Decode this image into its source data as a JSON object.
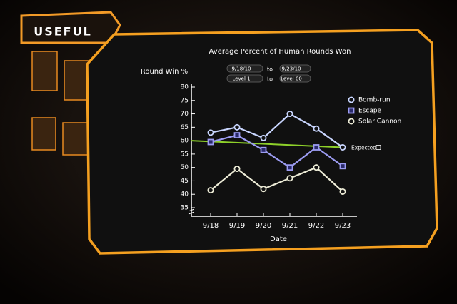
{
  "tab": {
    "label": "USEFUL"
  },
  "chart_data": {
    "type": "line",
    "title": "Average Percent of Human Rounds Won",
    "y_label": "Round Win %",
    "x_label": "Date",
    "filters": {
      "date_from": "9/18/10",
      "date_to": "9/23/10",
      "level_from": "Level 1",
      "level_to": "Level 60",
      "to": "to"
    },
    "categories": [
      "9/18",
      "9/19",
      "9/20",
      "9/21",
      "9/22",
      "9/23"
    ],
    "series": [
      {
        "name": "Bomb-run",
        "color": "#c9d6ff",
        "marker": "circle",
        "values": [
          63,
          65,
          61,
          70,
          64.5,
          57.5
        ]
      },
      {
        "name": "Escape",
        "color": "#9c9cf2",
        "marker": "square",
        "values": [
          59.5,
          62,
          56.5,
          50,
          57.5,
          50.5
        ]
      },
      {
        "name": "Solar Cannon",
        "color": "#ecebd6",
        "marker": "circle",
        "values": [
          41.5,
          49.5,
          42,
          46,
          50,
          41
        ]
      }
    ],
    "expected": {
      "name": "Expected",
      "color": "#8ed12a",
      "values": [
        60,
        57.5
      ]
    },
    "ylim": [
      35,
      80
    ],
    "yticks": [
      35,
      40,
      45,
      50,
      55,
      60,
      65,
      70,
      75,
      80
    ]
  }
}
